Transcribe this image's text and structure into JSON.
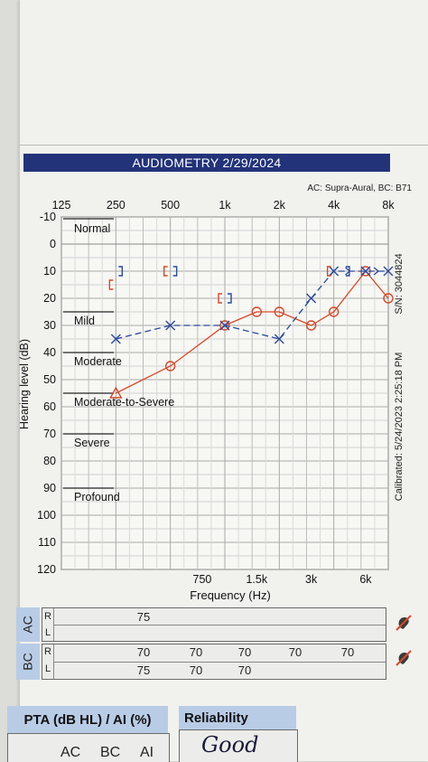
{
  "header": {
    "title": "AUDIOMETRY 2/29/2024",
    "transducers": "AC: Supra-Aural, BC: B71",
    "colors": {
      "title_bg": "#23337a",
      "header_blue": "#b9cce6",
      "right_ear": "#d44a2a",
      "left_ear": "#2a4a9a"
    }
  },
  "chart_data": {
    "type": "line",
    "title": "",
    "xlabel": "Frequency (Hz)",
    "ylabel": "Hearing level (dB)",
    "x_scale": "log",
    "ylim": [
      -10,
      120
    ],
    "y_inverted": true,
    "grid": true,
    "xticks_top": [
      {
        "label": "125",
        "hz": 125
      },
      {
        "label": "250",
        "hz": 250
      },
      {
        "label": "500",
        "hz": 500
      },
      {
        "label": "1k",
        "hz": 1000
      },
      {
        "label": "2k",
        "hz": 2000
      },
      {
        "label": "4k",
        "hz": 4000
      },
      {
        "label": "8k",
        "hz": 8000
      }
    ],
    "xticks_bottom": [
      {
        "label": "750",
        "hz": 750
      },
      {
        "label": "1.5k",
        "hz": 1500
      },
      {
        "label": "3k",
        "hz": 3000
      },
      {
        "label": "6k",
        "hz": 6000
      }
    ],
    "yticks": [
      "-10",
      "0",
      "10",
      "20",
      "30",
      "40",
      "50",
      "60",
      "70",
      "80",
      "90",
      "100",
      "110",
      "120"
    ],
    "severity_bands": [
      {
        "label": "Normal",
        "db": -10
      },
      {
        "label": "Mild",
        "db": 25
      },
      {
        "label": "Moderate",
        "db": 40
      },
      {
        "label": "Moderate-to-Severe",
        "db": 55
      },
      {
        "label": "Severe",
        "db": 70
      },
      {
        "label": "Profound",
        "db": 90
      }
    ],
    "series": [
      {
        "ear": "right",
        "kind": "air",
        "symbol": "circle",
        "color": "#d44a2a",
        "points": [
          {
            "hz": 250,
            "db": 55,
            "symbol": "triangle"
          },
          {
            "hz": 500,
            "db": 45
          },
          {
            "hz": 1000,
            "db": 30
          },
          {
            "hz": 1500,
            "db": 25
          },
          {
            "hz": 2000,
            "db": 25
          },
          {
            "hz": 3000,
            "db": 30
          },
          {
            "hz": 4000,
            "db": 25
          },
          {
            "hz": 6000,
            "db": 10
          },
          {
            "hz": 8000,
            "db": 20
          }
        ]
      },
      {
        "ear": "left",
        "kind": "air",
        "symbol": "x",
        "color": "#2a4a9a",
        "points": [
          {
            "hz": 250,
            "db": 35
          },
          {
            "hz": 500,
            "db": 30
          },
          {
            "hz": 1000,
            "db": 30
          },
          {
            "hz": 2000,
            "db": 35
          },
          {
            "hz": 3000,
            "db": 20
          },
          {
            "hz": 4000,
            "db": 10
          },
          {
            "hz": 6000,
            "db": 10
          },
          {
            "hz": 8000,
            "db": 10
          }
        ]
      },
      {
        "ear": "right",
        "kind": "bone",
        "symbol": "[",
        "color": "#d44a2a",
        "points": [
          {
            "hz": 250,
            "db": 15
          },
          {
            "hz": 500,
            "db": 10
          },
          {
            "hz": 1000,
            "db": 20
          },
          {
            "hz": 4000,
            "db": 10
          }
        ]
      },
      {
        "ear": "left",
        "kind": "bone",
        "symbol": "]",
        "color": "#2a4a9a",
        "points": [
          {
            "hz": 250,
            "db": 10
          },
          {
            "hz": 500,
            "db": 10
          },
          {
            "hz": 1000,
            "db": 20
          },
          {
            "hz": 4500,
            "db": 10
          }
        ]
      }
    ]
  },
  "side_labels": {
    "serial": "S/N: 3044824",
    "calibrated": "Calibrated: 5/24/2023 2:25:18 PM"
  },
  "masking_table": {
    "ac_label": "AC",
    "bc_label": "BC",
    "ear_r": "R",
    "ear_l": "L",
    "ac": {
      "R": [
        "",
        "75",
        "",
        "",
        "",
        "",
        ""
      ],
      "L": [
        "",
        "",
        "",
        "",
        "",
        "",
        ""
      ]
    },
    "bc": {
      "R": [
        "",
        "70",
        "70",
        "70",
        "70",
        "70",
        ""
      ],
      "L": [
        "",
        "75",
        "70",
        "70",
        "",
        "",
        ""
      ]
    }
  },
  "pta": {
    "header": "PTA (dB HL) / AI (%)",
    "col_ac": "AC",
    "col_bc": "BC",
    "col_ai": "AI"
  },
  "reliability": {
    "header": "Reliability",
    "value": "Good"
  }
}
